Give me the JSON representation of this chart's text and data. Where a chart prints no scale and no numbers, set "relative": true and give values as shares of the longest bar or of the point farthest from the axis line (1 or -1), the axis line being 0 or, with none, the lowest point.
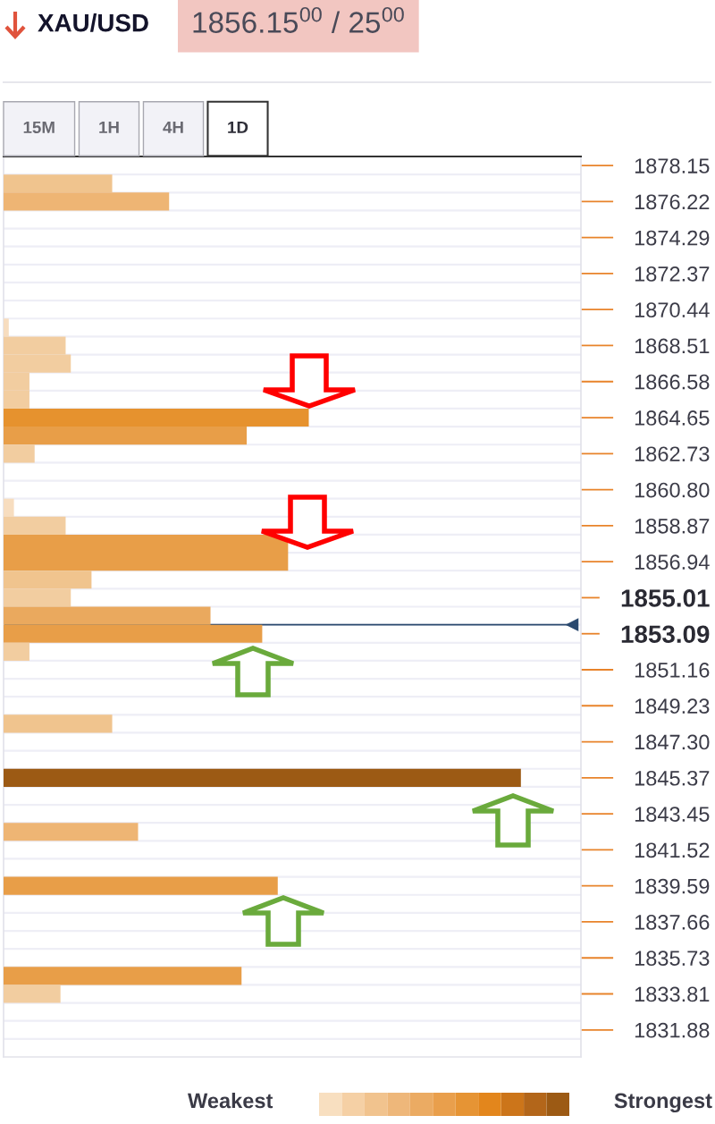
{
  "chart_data": {
    "type": "bar",
    "orientation": "horizontal",
    "relative": true,
    "title": "XAU/USD",
    "subtitle": "1856.15$^{00}$ / 25$^{00}$",
    "annotations": [
      "15M",
      "1H",
      "4H",
      "1D",
      "Weakest",
      "Strongest"
    ],
    "categories": [
      "1878.15",
      null,
      "1876.22",
      null,
      "1874.29",
      null,
      "1872.37",
      null,
      "1870.44",
      null,
      "1868.51",
      null,
      "1866.58",
      null,
      "1864.65",
      null,
      "1862.73",
      null,
      "1860.80",
      null,
      "1858.87",
      null,
      "1856.94",
      null,
      "1855.01",
      null,
      "1853.09",
      null,
      "1851.16",
      null,
      "1849.23",
      null,
      "1847.30",
      null,
      "1845.37",
      null,
      "1843.45",
      null,
      "1841.52",
      null,
      "1839.59",
      null,
      "1837.66",
      null,
      "1835.73",
      null,
      "1833.81",
      null,
      "1831.88",
      null
    ],
    "values": [
      null,
      0.21,
      0.32,
      null,
      null,
      null,
      null,
      null,
      null,
      0.01,
      0.12,
      0.13,
      0.05,
      0.05,
      0.59,
      0.47,
      0.06,
      null,
      null,
      0.02,
      0.12,
      0.55,
      0.55,
      0.17,
      0.13,
      0.4,
      0.5,
      0.05,
      null,
      null,
      null,
      0.21,
      null,
      null,
      1,
      null,
      null,
      0.26,
      null,
      null,
      0.53,
      null,
      null,
      null,
      null,
      0.46,
      0.11,
      null,
      null,
      null
    ],
    "colors": [
      null,
      "#f0c48e",
      "#eeb574",
      null,
      null,
      null,
      null,
      null,
      null,
      "#f7ddbf",
      "#f2cda0",
      "#f2cda0",
      "#f2cda0",
      "#f2cda0",
      "#e6922e",
      "#e89e48",
      "#f2cda0",
      null,
      null,
      "#f7ddbf",
      "#f2cda0",
      "#e89e48",
      "#e89e48",
      "#f0c48e",
      "#f2cda0",
      "#eaa95e",
      "#e89e48",
      "#f2cda0",
      null,
      null,
      null,
      "#f0c48e",
      null,
      null,
      "#9c5a14",
      null,
      null,
      "#eeb574",
      null,
      null,
      "#e89e48",
      null,
      null,
      null,
      null,
      "#e89e48",
      "#f2cda0",
      null,
      null,
      null
    ],
    "grid": "y",
    "ref_lines": [
      {
        "axis": "y",
        "value": "1853.09",
        "color": "#2b4a6f"
      }
    ]
  }
}
